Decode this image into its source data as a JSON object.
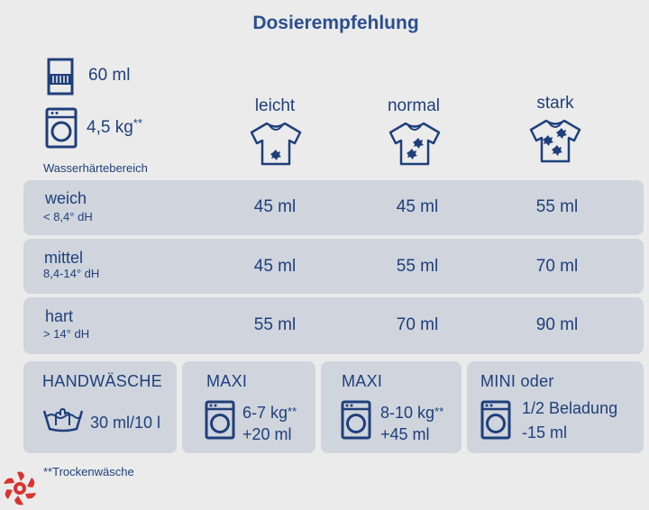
{
  "title": "Dosierempfehlung",
  "dose": {
    "value": "60 ml",
    "icon": "measuring-cup-icon"
  },
  "load": {
    "value": "4,5 kg",
    "suffix": "**",
    "icon": "washing-machine-icon"
  },
  "water_hardness_label": "Wasserhärtebereich",
  "columns": [
    {
      "label": "leicht",
      "icon": "shirt-light-stain-icon"
    },
    {
      "label": "normal",
      "icon": "shirt-medium-stain-icon"
    },
    {
      "label": "stark",
      "icon": "shirt-heavy-stain-icon"
    }
  ],
  "rows": [
    {
      "name": "weich",
      "range": "< 8,4° dH",
      "values": [
        "45 ml",
        "45 ml",
        "55 ml"
      ]
    },
    {
      "name": "mittel",
      "range": "8,4-14° dH",
      "values": [
        "45 ml",
        "55 ml",
        "70 ml"
      ]
    },
    {
      "name": "hart",
      "range": "> 14° dH",
      "values": [
        "55 ml",
        "70 ml",
        "90 ml"
      ]
    }
  ],
  "cards": [
    {
      "title": "HANDWÄSCHE",
      "line1": "30 ml/10 l",
      "icon": "handwash-basin-icon"
    },
    {
      "title": "MAXI",
      "line1": "6-7 kg",
      "line1_suffix": "**",
      "line2": "+20 ml",
      "icon": "washing-machine-icon"
    },
    {
      "title": "MAXI",
      "line1": "8-10 kg",
      "line1_suffix": "**",
      "line2": "+45 ml",
      "icon": "washing-machine-icon"
    },
    {
      "title": "MINI oder",
      "line1": "1/2 Beladung",
      "line2": "-15 ml",
      "icon": "washing-machine-icon"
    }
  ],
  "footnote": "**Trockenwäsche",
  "colors": {
    "text": "#1f3f7a",
    "panel": "#cfd4dd",
    "background": "#ebebeb",
    "logo": "#d8332e"
  }
}
